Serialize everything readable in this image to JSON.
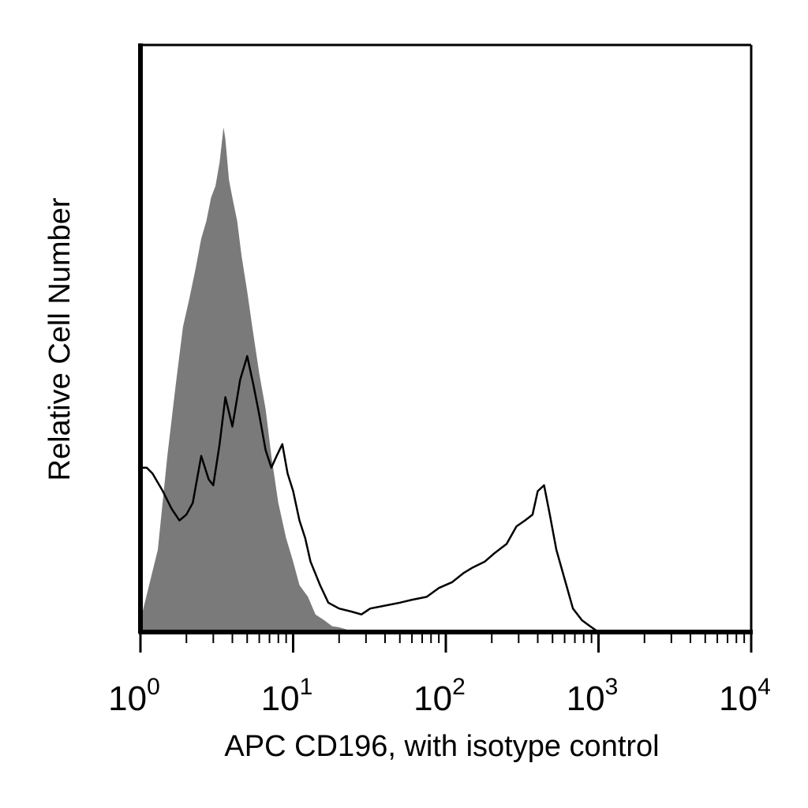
{
  "chart_data": {
    "type": "area",
    "title": "",
    "xlabel": "APC CD196, with isotype control",
    "ylabel": "Relative Cell Number",
    "x_scale": "log",
    "xlim": [
      1,
      10000
    ],
    "ylim": [
      0,
      100
    ],
    "x_ticks": [
      {
        "base": "10",
        "exp": "0"
      },
      {
        "base": "10",
        "exp": "1"
      },
      {
        "base": "10",
        "exp": "2"
      },
      {
        "base": "10",
        "exp": "3"
      },
      {
        "base": "10",
        "exp": "4"
      }
    ],
    "grid": false,
    "legend": "none",
    "series": [
      {
        "style": "filled",
        "color": "#7a7a7a",
        "x": [
          1.0,
          1.3,
          1.5,
          1.7,
          1.9,
          2.1,
          2.3,
          2.5,
          2.7,
          2.9,
          3.1,
          3.3,
          3.5,
          3.6,
          3.8,
          4.0,
          4.3,
          4.6,
          5.0,
          5.4,
          6.0,
          6.6,
          7.2,
          8.0,
          9.0,
          10.0,
          11.0,
          12.5,
          14.0,
          16.0,
          18.0,
          20.0,
          22.0,
          25.0
        ],
        "y": [
          2,
          14,
          30,
          42,
          52,
          57,
          62,
          67,
          70,
          74,
          76,
          80,
          86,
          84,
          77,
          74,
          70,
          64,
          58,
          52,
          44,
          38,
          30,
          22,
          16,
          12,
          8,
          6,
          3,
          2,
          1,
          0.8,
          0.5,
          0
        ]
      },
      {
        "style": "outline",
        "color": "#000000",
        "x": [
          1.0,
          1.1,
          1.2,
          1.4,
          1.6,
          1.8,
          2.0,
          2.2,
          2.5,
          2.8,
          3.0,
          3.3,
          3.6,
          4.0,
          4.5,
          5.0,
          5.5,
          6.0,
          6.6,
          7.2,
          7.8,
          8.5,
          9.2,
          10.0,
          11.0,
          12.0,
          13.0,
          15.0,
          17.0,
          20.0,
          24.0,
          28.0,
          32.0,
          40.0,
          50.0,
          60.0,
          75.0,
          90.0,
          110.0,
          130.0,
          150.0,
          180.0,
          210.0,
          250.0,
          290.0,
          330.0,
          370.0,
          400.0,
          440.0,
          480.0,
          530.0,
          600.0,
          680.0,
          780.0,
          880.0,
          1000.0
        ],
        "y": [
          28,
          28,
          27,
          24,
          21,
          19,
          20,
          22,
          30,
          26,
          25,
          32,
          40,
          35,
          43,
          47,
          42,
          37,
          31,
          28,
          30,
          32,
          27,
          24,
          19,
          16,
          12,
          8,
          5,
          4,
          3.5,
          3,
          4,
          4.5,
          5,
          5.5,
          6,
          7.5,
          8.5,
          10,
          11,
          12,
          13.5,
          15,
          18,
          19,
          20,
          24,
          25,
          20,
          14,
          9,
          4,
          2,
          1,
          0
        ]
      }
    ]
  }
}
